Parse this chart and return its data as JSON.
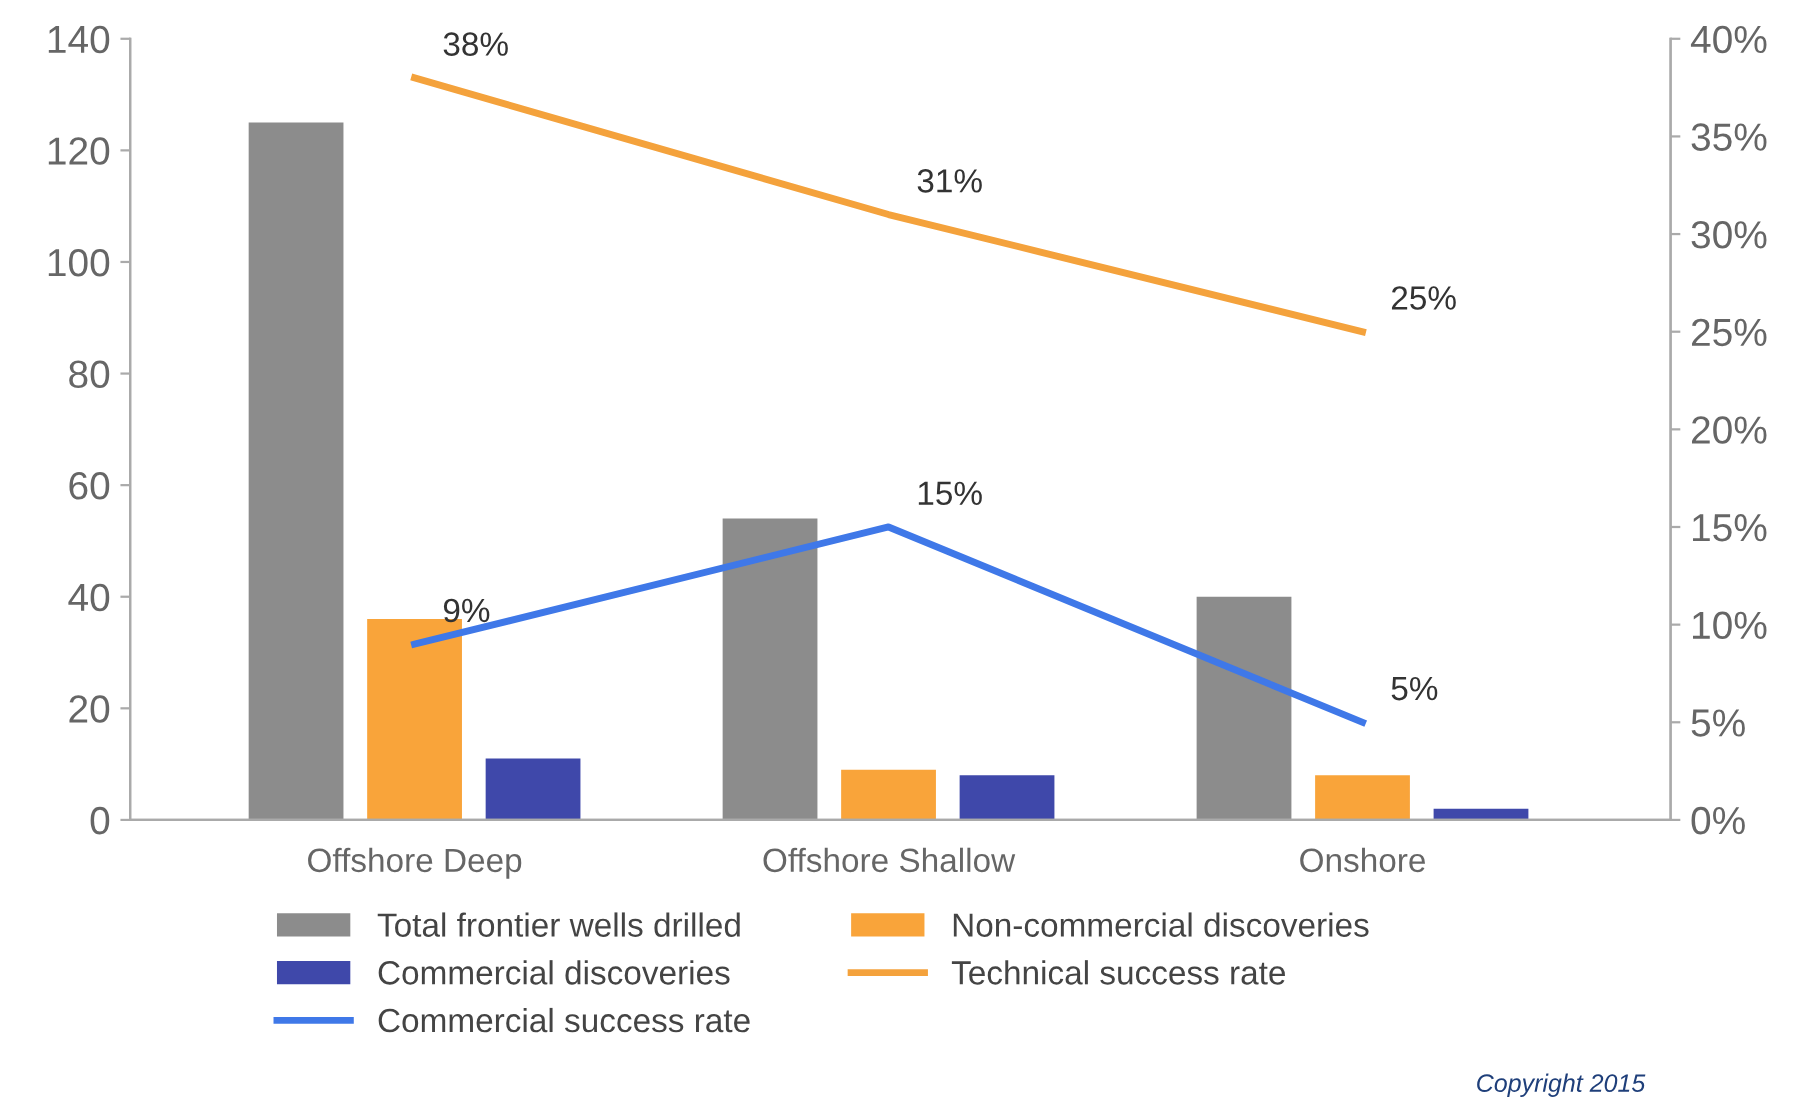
{
  "chart_data": {
    "type": "bar",
    "categories": [
      "Offshore Deep",
      "Offshore Shallow",
      "Onshore"
    ],
    "series": [
      {
        "name": "Total frontier wells drilled",
        "color": "#8c8c8c",
        "values": [
          125,
          54,
          40
        ]
      },
      {
        "name": "Non-commercial discoveries",
        "color": "#f9a43a",
        "values": [
          36,
          9,
          8
        ]
      },
      {
        "name": "Commercial discoveries",
        "color": "#3f48aa",
        "values": [
          11,
          8,
          2
        ]
      },
      {
        "name": "Technical success rate",
        "type": "line",
        "axis": "y2",
        "color": "#f4a23c",
        "values": [
          38,
          31,
          25
        ],
        "value_labels": [
          "38%",
          "31%",
          "25%"
        ]
      },
      {
        "name": "Commercial success rate",
        "type": "line",
        "axis": "y2",
        "color": "#3f78e8",
        "values": [
          9,
          15,
          5
        ],
        "value_labels": [
          "9%",
          "15%",
          "5%"
        ]
      }
    ],
    "ylim": [
      0,
      140
    ],
    "yticks": [
      0,
      20,
      40,
      60,
      80,
      100,
      120,
      140
    ],
    "y2lim": [
      0,
      40
    ],
    "y2ticks": [
      {
        "value": 0,
        "label": "0%"
      },
      {
        "value": 5,
        "label": "5%"
      },
      {
        "value": 10,
        "label": "10%"
      },
      {
        "value": 15,
        "label": "15%"
      },
      {
        "value": 20,
        "label": "20%"
      },
      {
        "value": 25,
        "label": "25%"
      },
      {
        "value": 30,
        "label": "30%"
      },
      {
        "value": 35,
        "label": "35%"
      },
      {
        "value": 40,
        "label": "40%"
      }
    ],
    "legend": "bottom",
    "annotations": [
      "Copyright 2015"
    ]
  }
}
